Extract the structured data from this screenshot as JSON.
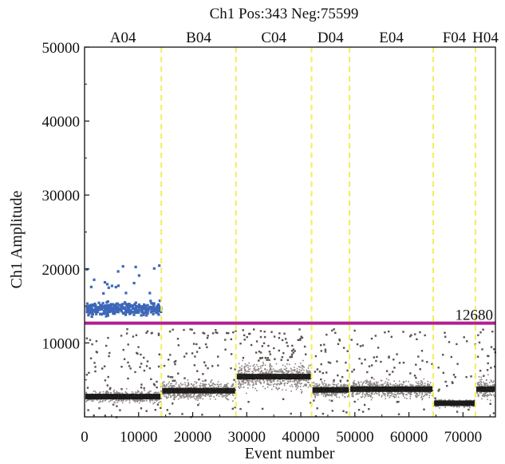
{
  "chart_data": {
    "type": "scatter",
    "title": "Ch1 Pos:343 Neg:75599",
    "xlabel": "Event number",
    "ylabel": "Ch1 Amplitude",
    "xlim": [
      0,
      76000
    ],
    "ylim": [
      0,
      50000
    ],
    "x_ticks": [
      0,
      10000,
      20000,
      30000,
      40000,
      50000,
      60000,
      70000
    ],
    "y_ticks": [
      10000,
      20000,
      30000,
      40000,
      50000
    ],
    "threshold": {
      "value": 12680,
      "label": "12680",
      "color": "#b0208f"
    },
    "well_boundaries": [
      14200,
      28000,
      42000,
      49000,
      64500,
      72300
    ],
    "boundary_color": "#f2ee5c",
    "wells": [
      {
        "name": "A04",
        "x_start": 0,
        "x_end": 14200,
        "neg_level": 2800,
        "neg_spread": 900,
        "pos_level": 14800,
        "pos_spread": 1300,
        "pos_count": 343,
        "outliers": 80
      },
      {
        "name": "B04",
        "x_start": 14200,
        "x_end": 28000,
        "neg_level": 3600,
        "neg_spread": 1400,
        "pos_level": null,
        "outliers": 70
      },
      {
        "name": "C04",
        "x_start": 28000,
        "x_end": 42000,
        "neg_level": 5500,
        "neg_spread": 2200,
        "pos_level": null,
        "outliers": 70
      },
      {
        "name": "D04",
        "x_start": 42000,
        "x_end": 49000,
        "neg_level": 3700,
        "neg_spread": 1200,
        "pos_level": null,
        "outliers": 40
      },
      {
        "name": "E04",
        "x_start": 49000,
        "x_end": 64500,
        "neg_level": 3800,
        "neg_spread": 1400,
        "pos_level": null,
        "outliers": 60
      },
      {
        "name": "F04",
        "x_start": 64500,
        "x_end": 72300,
        "neg_level": 1900,
        "neg_spread": 600,
        "pos_level": null,
        "outliers": 25
      },
      {
        "name": "H04",
        "x_start": 72300,
        "x_end": 76000,
        "neg_level": 3800,
        "neg_spread": 1600,
        "pos_level": null,
        "outliers": 20
      }
    ],
    "positive_color": "#3d67b8",
    "negative_dark_color": "#111111",
    "negative_light_color": "#8a8280",
    "grid": false,
    "legend": "none"
  }
}
